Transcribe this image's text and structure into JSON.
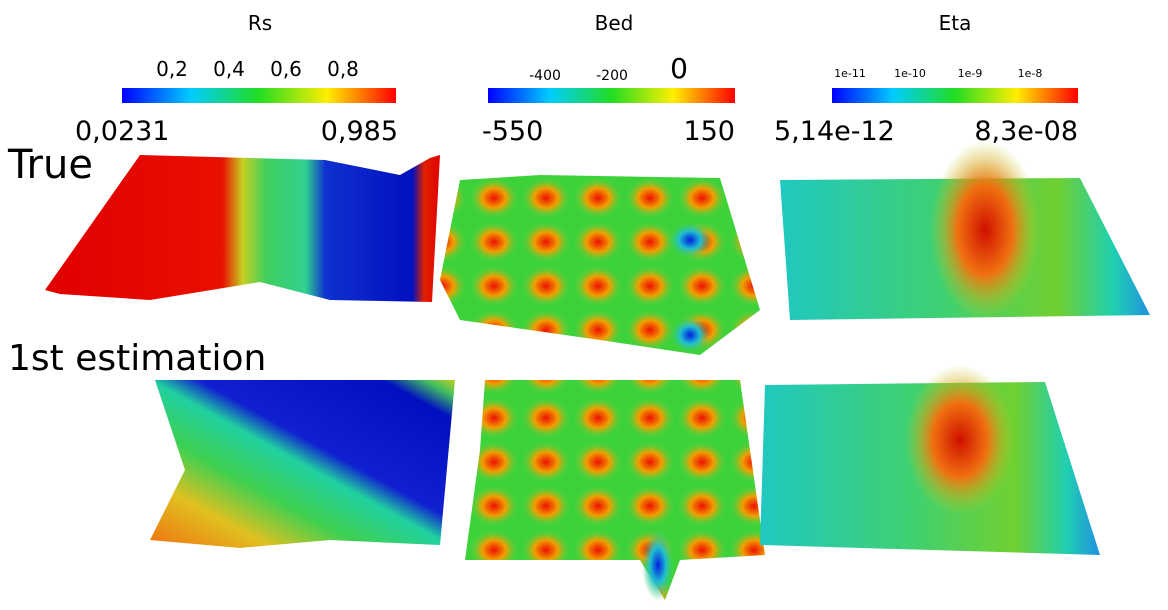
{
  "colorbars": [
    {
      "title": "Rs",
      "ticks": [
        "0,2",
        "0,4",
        "0,6",
        "0,8"
      ],
      "min_label": "0,0231",
      "max_label": "0,985"
    },
    {
      "title": "Bed",
      "ticks": [
        "-400",
        "-200",
        "0"
      ],
      "min_label": "-550",
      "max_label": "150"
    },
    {
      "title": "Eta",
      "ticks": [
        "1e-11",
        "1e-10",
        "1e-9",
        "1e-8"
      ],
      "min_label": "5,14e-12",
      "max_label": "8,3e-08"
    }
  ],
  "rows": [
    {
      "label": "True"
    },
    {
      "label": "1st estimation"
    }
  ]
}
